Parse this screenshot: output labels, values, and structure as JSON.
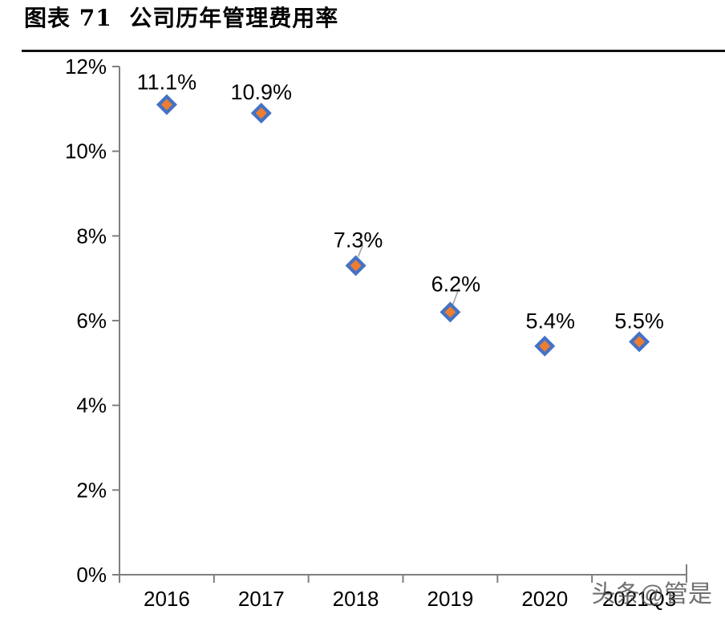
{
  "header": {
    "title": "图表 71  公司历年管理费用率"
  },
  "watermark": {
    "text": "头条@管是"
  },
  "chart_data": {
    "type": "scatter",
    "title": "公司历年管理费用率",
    "categories": [
      "2016",
      "2017",
      "2018",
      "2019",
      "2020",
      "2021Q3"
    ],
    "series": [
      {
        "name": "管理费用率",
        "values": [
          11.1,
          10.9,
          7.3,
          6.2,
          5.4,
          5.5
        ]
      }
    ],
    "point_labels": [
      "11.1%",
      "10.9%",
      "7.3%",
      "6.2%",
      "5.4%",
      "5.5%"
    ],
    "y_axis": {
      "min": 0,
      "max": 12,
      "tick_step": 2,
      "tick_labels": [
        "0%",
        "2%",
        "4%",
        "6%",
        "8%",
        "10%",
        "12%"
      ]
    },
    "xlabel": "",
    "ylabel": "",
    "grid": false,
    "legend": "none",
    "marker": {
      "shape": "diamond",
      "fill": "#ED7D31",
      "stroke": "#4472C4"
    },
    "colors": {
      "axis": "#7F7F7F",
      "text": "#000000",
      "leader": "#9E9E9E"
    }
  }
}
